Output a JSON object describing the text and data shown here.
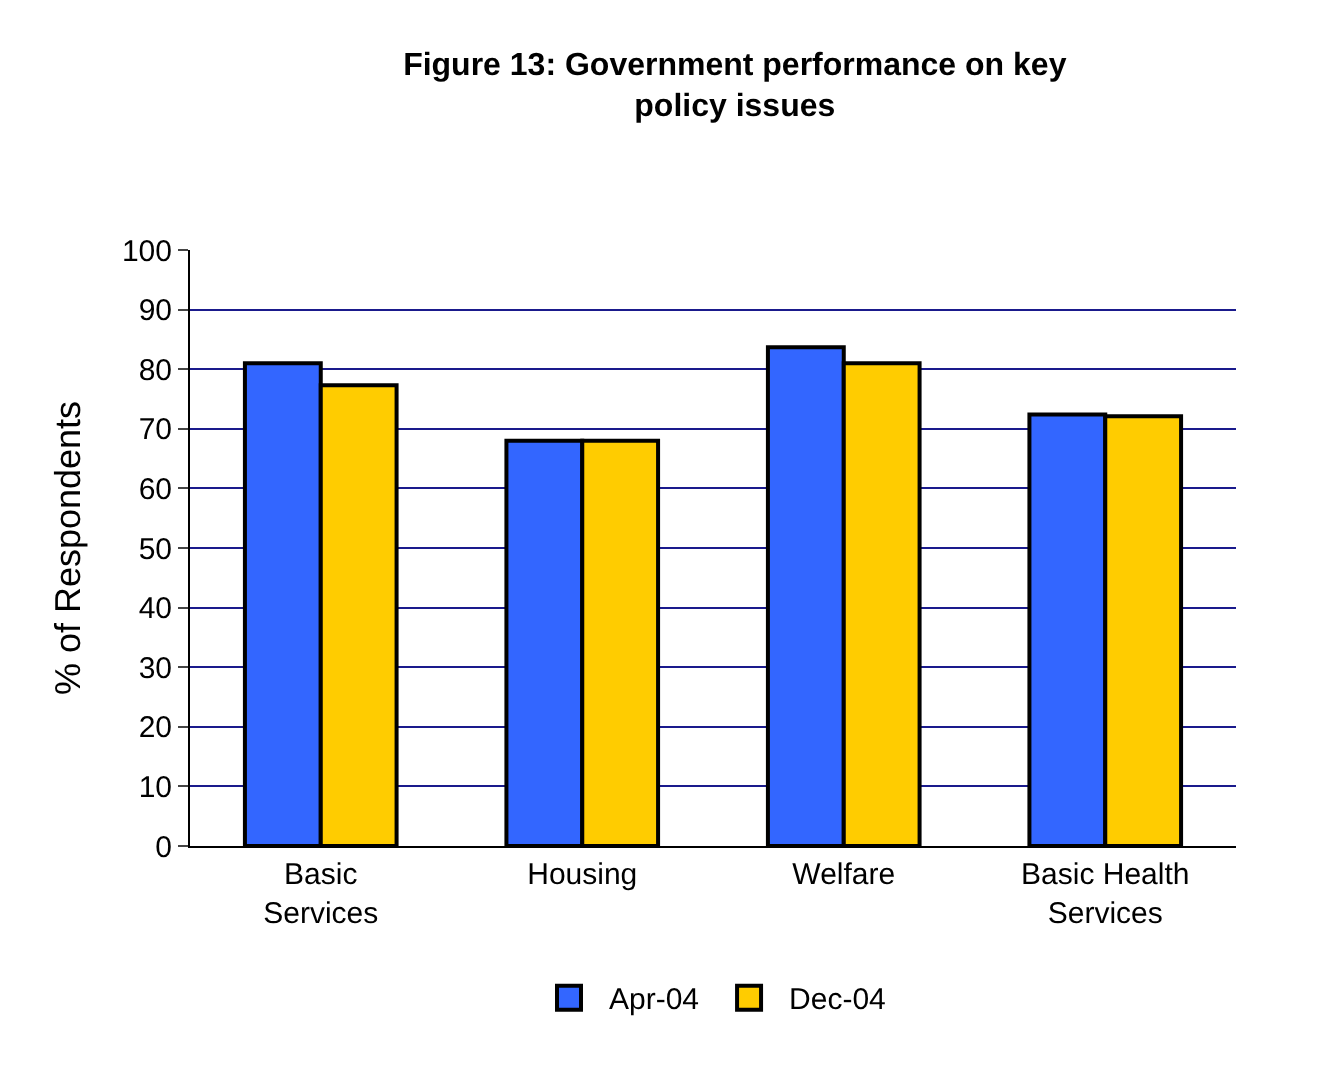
{
  "chart_data": {
    "type": "bar",
    "title": "Figure 13: Government performance on key policy issues",
    "ylabel": "% of Respondents",
    "categories": [
      "Basic Services",
      "Housing",
      "Welfare",
      "Basic Health Services"
    ],
    "series": [
      {
        "name": "Apr-04",
        "color": "#3366ff",
        "values": [
          81,
          68,
          83.7,
          72.4
        ]
      },
      {
        "name": "Dec-04",
        "color": "#ffcc00",
        "values": [
          77.3,
          68,
          81,
          72.1
        ]
      }
    ],
    "ylim": [
      0,
      100
    ],
    "yticks": [
      0,
      10,
      20,
      30,
      40,
      50,
      60,
      70,
      80,
      90,
      100
    ],
    "grid": "y",
    "legend": "bottom"
  }
}
